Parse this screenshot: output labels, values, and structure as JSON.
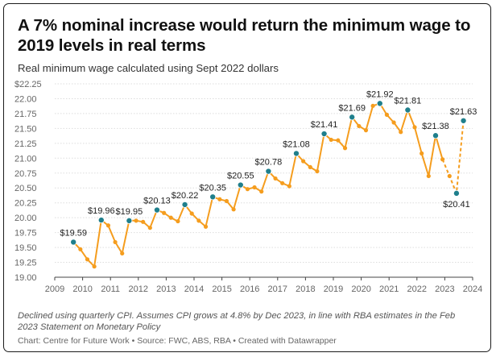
{
  "title": "A 7% nominal increase would return the minimum wage to 2019 levels in real terms",
  "subtitle": "Real minimum wage calculated using Sept 2022 dollars",
  "notes": "Declined using quarterly CPI. Assumes CPI grows at 4.8% by Dec 2023, in line with RBA estimates in the Feb 2023 Statement on Monetary Policy",
  "footer": "Chart: Centre for Future Work • Source: FWC, ABS, RBA • Created with Datawrapper",
  "colors": {
    "line": "#f59d1e",
    "marker": "#1f7f8c",
    "grid": "#dddddd",
    "text": "#222222"
  },
  "chart_data": {
    "type": "line",
    "xlim": [
      2009,
      2024
    ],
    "ylim": [
      19.0,
      22.25
    ],
    "x_ticks": [
      2009,
      2010,
      2011,
      2012,
      2013,
      2014,
      2015,
      2016,
      2017,
      2018,
      2019,
      2020,
      2021,
      2022,
      2023,
      2024
    ],
    "y_ticks": [
      19.0,
      19.25,
      19.5,
      19.75,
      20.0,
      20.25,
      20.5,
      20.75,
      21.0,
      21.25,
      21.5,
      21.75,
      22.0,
      22.25
    ],
    "y_tick_labels": [
      "19.00",
      "19.25",
      "19.50",
      "19.75",
      "20.00",
      "20.25",
      "20.50",
      "20.75",
      "21.00",
      "21.25",
      "21.50",
      "21.75",
      "22.00",
      "$22.25"
    ],
    "grid": true,
    "series": [
      {
        "values": [
          {
            "x": 2009.67,
            "y": 19.59
          },
          {
            "x": 2009.92,
            "y": 19.47
          },
          {
            "x": 2010.17,
            "y": 19.3
          },
          {
            "x": 2010.42,
            "y": 19.18
          },
          {
            "x": 2010.67,
            "y": 19.96
          },
          {
            "x": 2010.92,
            "y": 19.87
          },
          {
            "x": 2011.17,
            "y": 19.59
          },
          {
            "x": 2011.42,
            "y": 19.4
          },
          {
            "x": 2011.67,
            "y": 19.95
          },
          {
            "x": 2011.92,
            "y": 19.95
          },
          {
            "x": 2012.17,
            "y": 19.93
          },
          {
            "x": 2012.42,
            "y": 19.83
          },
          {
            "x": 2012.67,
            "y": 20.13
          },
          {
            "x": 2012.92,
            "y": 20.08
          },
          {
            "x": 2013.17,
            "y": 20.0
          },
          {
            "x": 2013.42,
            "y": 19.94
          },
          {
            "x": 2013.67,
            "y": 20.22
          },
          {
            "x": 2013.92,
            "y": 20.07
          },
          {
            "x": 2014.17,
            "y": 19.95
          },
          {
            "x": 2014.42,
            "y": 19.85
          },
          {
            "x": 2014.67,
            "y": 20.35
          },
          {
            "x": 2014.92,
            "y": 20.31
          },
          {
            "x": 2015.17,
            "y": 20.28
          },
          {
            "x": 2015.42,
            "y": 20.14
          },
          {
            "x": 2015.67,
            "y": 20.55
          },
          {
            "x": 2015.92,
            "y": 20.48
          },
          {
            "x": 2016.17,
            "y": 20.51
          },
          {
            "x": 2016.42,
            "y": 20.44
          },
          {
            "x": 2016.67,
            "y": 20.78
          },
          {
            "x": 2016.92,
            "y": 20.66
          },
          {
            "x": 2017.17,
            "y": 20.58
          },
          {
            "x": 2017.42,
            "y": 20.53
          },
          {
            "x": 2017.67,
            "y": 21.08
          },
          {
            "x": 2017.92,
            "y": 20.95
          },
          {
            "x": 2018.17,
            "y": 20.85
          },
          {
            "x": 2018.42,
            "y": 20.78
          },
          {
            "x": 2018.67,
            "y": 21.41
          },
          {
            "x": 2018.92,
            "y": 21.31
          },
          {
            "x": 2019.17,
            "y": 21.3
          },
          {
            "x": 2019.42,
            "y": 21.17
          },
          {
            "x": 2019.67,
            "y": 21.69
          },
          {
            "x": 2019.92,
            "y": 21.54
          },
          {
            "x": 2020.17,
            "y": 21.47
          },
          {
            "x": 2020.42,
            "y": 21.88
          },
          {
            "x": 2020.67,
            "y": 21.92
          },
          {
            "x": 2020.92,
            "y": 21.73
          },
          {
            "x": 2021.17,
            "y": 21.6
          },
          {
            "x": 2021.42,
            "y": 21.44
          },
          {
            "x": 2021.67,
            "y": 21.81
          },
          {
            "x": 2021.92,
            "y": 21.52
          },
          {
            "x": 2022.17,
            "y": 21.08
          },
          {
            "x": 2022.42,
            "y": 20.7
          },
          {
            "x": 2022.67,
            "y": 21.38
          },
          {
            "x": 2022.92,
            "y": 20.98
          }
        ],
        "projected": [
          {
            "x": 2022.92,
            "y": 20.98
          },
          {
            "x": 2023.17,
            "y": 20.7
          },
          {
            "x": 2023.42,
            "y": 20.41
          },
          {
            "x": 2023.67,
            "y": 21.63
          }
        ]
      }
    ],
    "annotations": [
      {
        "x": 2009.67,
        "y": 19.59,
        "label": "$19.59",
        "pos": "above"
      },
      {
        "x": 2010.67,
        "y": 19.96,
        "label": "$19.96",
        "pos": "above"
      },
      {
        "x": 2011.67,
        "y": 19.95,
        "label": "$19.95",
        "pos": "above"
      },
      {
        "x": 2012.67,
        "y": 20.13,
        "label": "$20.13",
        "pos": "above"
      },
      {
        "x": 2013.67,
        "y": 20.22,
        "label": "$20.22",
        "pos": "above"
      },
      {
        "x": 2014.67,
        "y": 20.35,
        "label": "$20.35",
        "pos": "above"
      },
      {
        "x": 2015.67,
        "y": 20.55,
        "label": "$20.55",
        "pos": "above"
      },
      {
        "x": 2016.67,
        "y": 20.78,
        "label": "$20.78",
        "pos": "above"
      },
      {
        "x": 2017.67,
        "y": 21.08,
        "label": "$21.08",
        "pos": "above"
      },
      {
        "x": 2018.67,
        "y": 21.41,
        "label": "$21.41",
        "pos": "above"
      },
      {
        "x": 2019.67,
        "y": 21.69,
        "label": "$21.69",
        "pos": "above"
      },
      {
        "x": 2020.67,
        "y": 21.92,
        "label": "$21.92",
        "pos": "above"
      },
      {
        "x": 2021.67,
        "y": 21.81,
        "label": "$21.81",
        "pos": "above"
      },
      {
        "x": 2022.67,
        "y": 21.38,
        "label": "$21.38",
        "pos": "above"
      },
      {
        "x": 2023.42,
        "y": 20.41,
        "label": "$20.41",
        "pos": "below"
      },
      {
        "x": 2023.67,
        "y": 21.63,
        "label": "$21.63",
        "pos": "above"
      }
    ]
  }
}
